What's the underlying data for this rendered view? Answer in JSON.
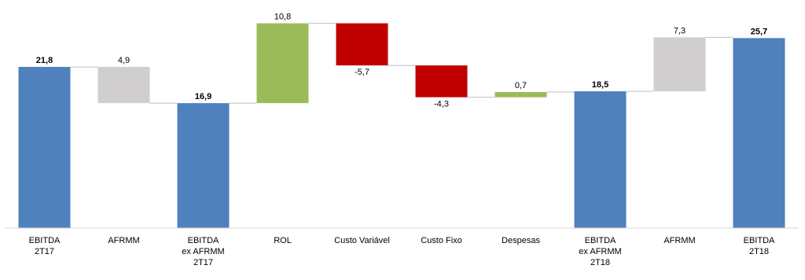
{
  "chart_data": {
    "type": "waterfall",
    "categories": [
      [
        "EBITDA",
        "2T17"
      ],
      [
        "AFRMM"
      ],
      [
        "EBITDA",
        "ex AFRMM",
        "2T17"
      ],
      [
        "ROL"
      ],
      [
        "Custo Variável"
      ],
      [
        "Custo Fixo"
      ],
      [
        "Despesas"
      ],
      [
        "EBITDA",
        "ex AFRMM",
        "2T18"
      ],
      [
        "AFRMM"
      ],
      [
        "EBITDA",
        "2T18"
      ]
    ],
    "values": [
      21.8,
      4.9,
      16.9,
      10.8,
      -5.7,
      -4.3,
      0.7,
      18.5,
      7.3,
      25.7
    ],
    "value_labels": [
      "21,8",
      "4,9",
      "16,9",
      "10,8",
      "-5,7",
      "-4,3",
      "0,7",
      "18,5",
      "7,3",
      "25,7"
    ],
    "measure": [
      "total",
      "subtract",
      "total",
      "add",
      "add",
      "add",
      "add",
      "total",
      "add",
      "total"
    ],
    "colors": [
      "#4f81bd",
      "#d0cece",
      "#4f81bd",
      "#9bbb59",
      "#c00000",
      "#c00000",
      "#9bbb59",
      "#4f81bd",
      "#d0cece",
      "#4f81bd"
    ],
    "ylim": [
      0,
      30
    ]
  }
}
